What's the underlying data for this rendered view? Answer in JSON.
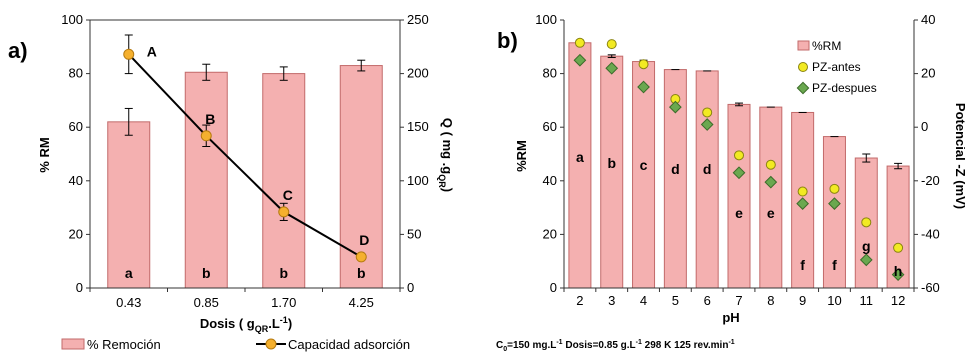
{
  "chart_data": [
    {
      "panel_label": "a)",
      "type": "bar",
      "categories": [
        "0.43",
        "0.85",
        "1.70",
        "4.25"
      ],
      "xlabel": {
        "text": "Dosis (",
        "sub": "QR",
        "pre_sub": " g",
        "post": ".L",
        "sup": "-1",
        "close": ")"
      },
      "ylabel": "% RM",
      "ylim": [
        0,
        100
      ],
      "yticks": [
        0,
        20,
        40,
        60,
        80,
        100
      ],
      "y2label": {
        "text": "Q ( mg .g",
        "sub": "QR",
        "close": ")"
      },
      "y2lim": [
        0,
        250
      ],
      "y2ticks": [
        0,
        50,
        100,
        150,
        200,
        250
      ],
      "series": [
        {
          "name": "% Remoción",
          "kind": "bar",
          "axis": "left",
          "color": "#f4b0b0",
          "values": [
            62,
            80.5,
            80,
            83
          ],
          "errors": [
            5,
            3,
            2.5,
            2
          ]
        },
        {
          "name": "Capacidad adsorción",
          "kind": "line",
          "axis": "right",
          "color": "#f5b02e",
          "values": [
            218,
            142,
            71,
            29
          ],
          "errors": [
            18,
            10,
            8,
            0
          ],
          "point_labels": [
            "A",
            "B",
            "C",
            "D"
          ]
        }
      ],
      "bar_letters": [
        "a",
        "b",
        "b",
        "b"
      ]
    },
    {
      "panel_label": "b)",
      "type": "bar",
      "categories": [
        "2",
        "3",
        "4",
        "5",
        "6",
        "7",
        "8",
        "9",
        "10",
        "11",
        "12"
      ],
      "xlabel": "pH",
      "ylabel": "%RM",
      "ylim": [
        0,
        100
      ],
      "yticks": [
        0,
        20,
        40,
        60,
        80,
        100
      ],
      "y2label": "Potencial -Z (mV)",
      "y2lim": [
        -60,
        40
      ],
      "y2ticks": [
        -60,
        -40,
        -20,
        0,
        20,
        40
      ],
      "series": [
        {
          "name": "%RM",
          "kind": "bar",
          "axis": "left",
          "color": "#f4b0b0",
          "values": [
            91.5,
            86.5,
            84.5,
            81.5,
            81,
            68.5,
            67.5,
            65.5,
            56.5,
            48.5,
            45.5
          ],
          "errors": [
            1,
            0.5,
            0.5,
            0,
            0,
            0.5,
            0,
            0,
            0,
            1.5,
            1
          ]
        },
        {
          "name": "PZ-antes",
          "kind": "scatter",
          "axis": "right",
          "color": "#f2ea22",
          "values": [
            31.5,
            31,
            23.5,
            10.5,
            5.5,
            -10.5,
            -14,
            -24,
            -23,
            -35.5,
            -45
          ]
        },
        {
          "name": "PZ-despues",
          "kind": "scatter",
          "axis": "right",
          "color": "#6aa84f",
          "values": [
            25,
            22,
            15,
            7.5,
            1,
            -17,
            -20.5,
            -28.5,
            -28.5,
            -49.5,
            -55
          ]
        }
      ],
      "bar_letters": [
        "a",
        "b",
        "c",
        "d",
        "d",
        "e",
        "e",
        "f",
        "f",
        "g",
        "h"
      ],
      "legend_position": "top-right",
      "conditions": {
        "c0": "C",
        "c0_sub": "0",
        "c0_rest": "=150 mg.L",
        "c0_sup": "-1",
        "dosis": " Dosis=0.85 g.L",
        "dosis_sup": "-1",
        "rest": "  298 K 125 rev.min",
        "rest_sup": "-1"
      }
    }
  ]
}
